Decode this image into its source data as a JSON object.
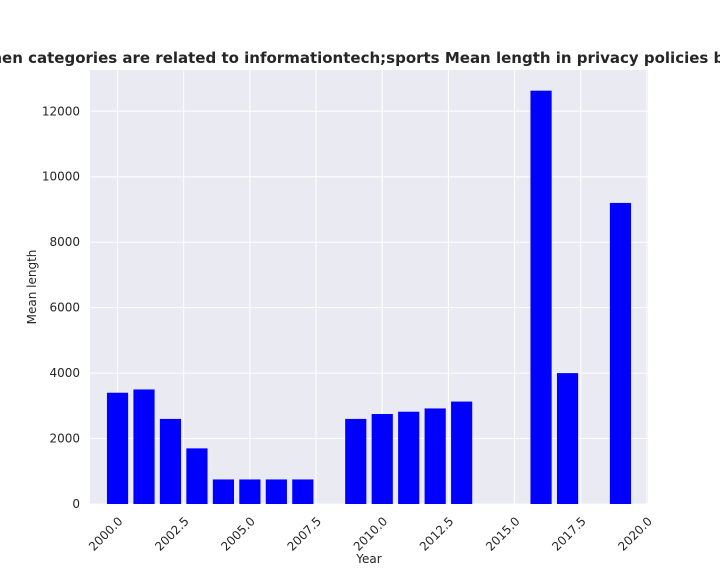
{
  "chart_data": {
    "type": "bar",
    "title": "when categories are related to informationtech;sports Mean length in privacy policies by Year",
    "xlabel": "Year",
    "ylabel": "Mean length",
    "x": [
      2000,
      2001,
      2002,
      2003,
      2004,
      2005,
      2006,
      2007,
      2009,
      2010,
      2011,
      2012,
      2013,
      2016,
      2017,
      2019
    ],
    "values": [
      3400,
      3500,
      2600,
      1700,
      750,
      750,
      750,
      750,
      2600,
      2750,
      2820,
      2920,
      3130,
      12630,
      4000,
      9200
    ],
    "xticks": [
      "2000.0",
      "2002.5",
      "2005.0",
      "2007.5",
      "2010.0",
      "2012.5",
      "2015.0",
      "2017.5",
      "2020.0"
    ],
    "yticks": [
      "0",
      "2000",
      "4000",
      "6000",
      "8000",
      "10000",
      "12000"
    ],
    "xlim": [
      1998.96,
      2020.04
    ],
    "ylim": [
      0,
      13262
    ],
    "grid": true,
    "background_color": "#eaeaf2",
    "grid_color": "#ffffff",
    "bar_color": "#0000ff",
    "text_color": "#262626"
  }
}
